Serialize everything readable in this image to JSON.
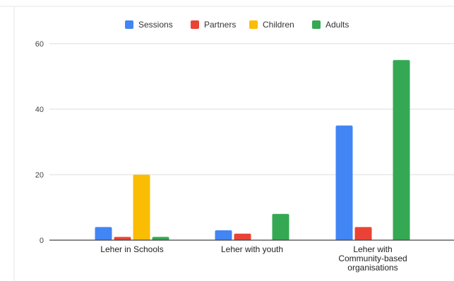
{
  "chart_data": {
    "type": "bar",
    "title": "",
    "xlabel": "",
    "ylabel": "",
    "ylim": [
      0,
      60
    ],
    "yticks": [
      0,
      20,
      40,
      60
    ],
    "grid": true,
    "legend_position": "top",
    "categories": [
      [
        "Leher in Schools"
      ],
      [
        "Leher with youth"
      ],
      [
        "Leher with",
        "Community-based",
        "organisations"
      ]
    ],
    "series": [
      {
        "name": "Sessions",
        "color": "#4285f4",
        "values": [
          4,
          3,
          35
        ]
      },
      {
        "name": "Partners",
        "color": "#ea4335",
        "values": [
          1,
          2,
          4
        ]
      },
      {
        "name": "Children",
        "color": "#fbbc04",
        "values": [
          20,
          0,
          0
        ]
      },
      {
        "name": "Adults",
        "color": "#34a853",
        "values": [
          1,
          8,
          55
        ]
      }
    ]
  }
}
